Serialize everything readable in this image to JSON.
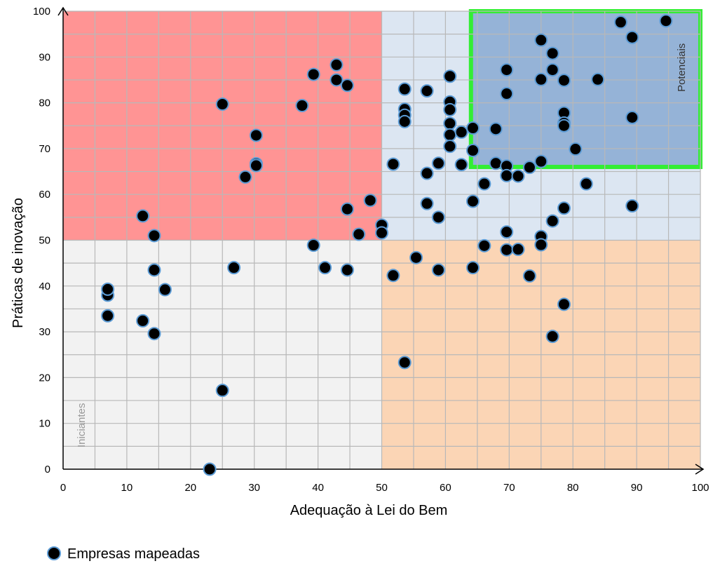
{
  "chart_data": {
    "type": "scatter",
    "xlabel": "Adequação à Lei do Bem",
    "ylabel": "Práticas de inovação",
    "xlim": [
      0,
      100
    ],
    "ylim": [
      0,
      100
    ],
    "x_ticks": [
      "0",
      "10",
      "20",
      "30",
      "40",
      "50",
      "60",
      "70",
      "80",
      "90",
      "100"
    ],
    "y_ticks": [
      "0",
      "10",
      "20",
      "30",
      "40",
      "50",
      "60",
      "70",
      "80",
      "90",
      "100"
    ],
    "grid": true,
    "legend_position": "bottom-left",
    "quadrants": [
      {
        "name": "top-left",
        "x": [
          0,
          50
        ],
        "y": [
          50,
          100
        ],
        "color": "#ff9494"
      },
      {
        "name": "top-right",
        "x": [
          50,
          100
        ],
        "y": [
          50,
          100
        ],
        "color": "#dce6f2"
      },
      {
        "name": "bottom-left",
        "x": [
          0,
          50
        ],
        "y": [
          0,
          50
        ],
        "color": "#f2f2f2"
      },
      {
        "name": "bottom-right",
        "x": [
          50,
          100
        ],
        "y": [
          0,
          50
        ],
        "color": "#fbd5b5"
      }
    ],
    "highlight_region": {
      "x": [
        64,
        100
      ],
      "y": [
        66,
        100
      ],
      "fill": "#95b3d7",
      "border": "#33ee33"
    },
    "annotations": [
      {
        "text": "Potenciais",
        "color": "#333333"
      },
      {
        "text": "Iniciantes",
        "color": "#999999"
      }
    ],
    "series": [
      {
        "name": "Empresas mapeadas",
        "marker_fill": "#000000",
        "marker_edge": "#5b9bd5",
        "points": [
          [
            7,
            38
          ],
          [
            7,
            39.3
          ],
          [
            7,
            33.5
          ],
          [
            12.5,
            55.3
          ],
          [
            12.5,
            32.4
          ],
          [
            14.3,
            51
          ],
          [
            14.3,
            43.5
          ],
          [
            14.3,
            29.6
          ],
          [
            16,
            39.2
          ],
          [
            23,
            0
          ],
          [
            25,
            79.7
          ],
          [
            25,
            17.2
          ],
          [
            26.8,
            44
          ],
          [
            28.6,
            63.8
          ],
          [
            30.3,
            72.9
          ],
          [
            30.3,
            66.7
          ],
          [
            30.3,
            66.3
          ],
          [
            37.5,
            79.4
          ],
          [
            39.3,
            86.2
          ],
          [
            39.3,
            48.9
          ],
          [
            41.1,
            44
          ],
          [
            42.9,
            88.3
          ],
          [
            42.9,
            85
          ],
          [
            44.6,
            83.8
          ],
          [
            44.6,
            56.8
          ],
          [
            44.6,
            43.5
          ],
          [
            46.4,
            51.3
          ],
          [
            48.2,
            58.7
          ],
          [
            50,
            53.3
          ],
          [
            50,
            51.6
          ],
          [
            51.8,
            66.6
          ],
          [
            51.8,
            42.3
          ],
          [
            53.6,
            83
          ],
          [
            53.6,
            78.6
          ],
          [
            53.6,
            77.3
          ],
          [
            53.6,
            75.9
          ],
          [
            53.6,
            23.3
          ],
          [
            55.4,
            46.2
          ],
          [
            57.1,
            82.6
          ],
          [
            57.1,
            64.6
          ],
          [
            57.1,
            58
          ],
          [
            58.9,
            66.8
          ],
          [
            58.9,
            55
          ],
          [
            58.9,
            43.5
          ],
          [
            60.7,
            85.8
          ],
          [
            60.7,
            80.2
          ],
          [
            60.7,
            78.5
          ],
          [
            60.7,
            75.5
          ],
          [
            60.7,
            73
          ],
          [
            60.7,
            70.5
          ],
          [
            62.5,
            73.6
          ],
          [
            62.5,
            66.5
          ],
          [
            64.3,
            74.5
          ],
          [
            64.3,
            69.6
          ],
          [
            64.3,
            58.5
          ],
          [
            64.3,
            44
          ],
          [
            66.1,
            62.3
          ],
          [
            66.1,
            48.8
          ],
          [
            67.9,
            74.3
          ],
          [
            67.9,
            66.8
          ],
          [
            69.6,
            87.2
          ],
          [
            69.6,
            82
          ],
          [
            69.6,
            66.2
          ],
          [
            69.6,
            64.1
          ],
          [
            69.6,
            51.8
          ],
          [
            69.6,
            47.9
          ],
          [
            71.4,
            64
          ],
          [
            71.4,
            48
          ],
          [
            73.2,
            65.9
          ],
          [
            73.2,
            42.2
          ],
          [
            75,
            93.7
          ],
          [
            75,
            85.1
          ],
          [
            75,
            67.2
          ],
          [
            75,
            50.8
          ],
          [
            75,
            49
          ],
          [
            76.8,
            90.8
          ],
          [
            76.8,
            87.2
          ],
          [
            76.8,
            54.2
          ],
          [
            76.8,
            29
          ],
          [
            78.6,
            84.9
          ],
          [
            78.6,
            77.8
          ],
          [
            78.6,
            75.6
          ],
          [
            78.6,
            75
          ],
          [
            78.6,
            57
          ],
          [
            78.6,
            36
          ],
          [
            80.4,
            69.9
          ],
          [
            82.1,
            62.3
          ],
          [
            83.9,
            85.1
          ],
          [
            87.5,
            97.6
          ],
          [
            89.3,
            94.3
          ],
          [
            89.3,
            76.8
          ],
          [
            89.3,
            57.5
          ],
          [
            94.6,
            97.9
          ]
        ]
      }
    ]
  }
}
